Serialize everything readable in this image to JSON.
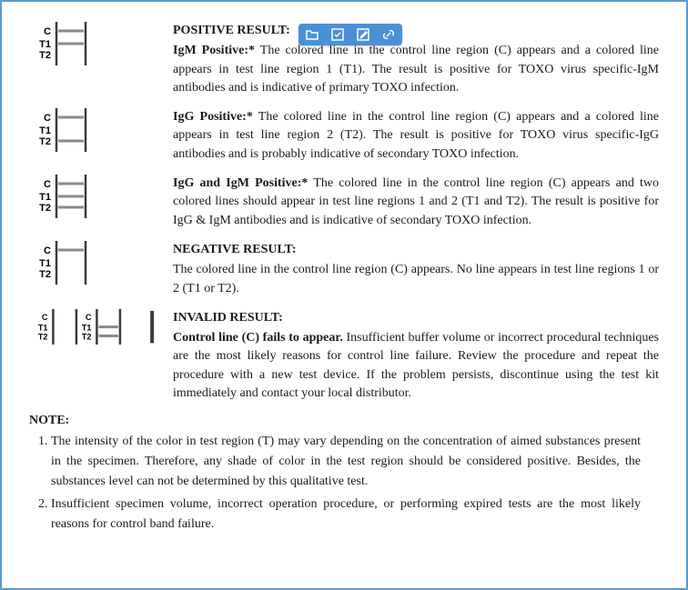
{
  "toolbar": {
    "bg": "#4a90d9",
    "icon_color": "#ffffff"
  },
  "strip": {
    "width": 56,
    "height": 48,
    "labels": [
      "C",
      "T1",
      "T2"
    ],
    "label_font": 11,
    "border_color": "#3a3a3a",
    "line_color": "#8a8a8a",
    "line_thickness": 3
  },
  "sections": {
    "positive": {
      "heading": "POSITIVE RESULT:",
      "igm": {
        "leadin": "IgM Positive:*",
        "body": " The colored line in the control line region (C) appears and a colored line appears in test line region 1 (T1). The result is positive for TOXO virus specific-IgM antibodies  and is indicative of primary TOXO infection.",
        "lines": {
          "C": true,
          "T1": true,
          "T2": false
        }
      },
      "igg": {
        "leadin": "IgG Positive:*",
        "body": " The colored line in the control line region (C) appears and a colored line appears in test line region 2 (T2). The result is positive for TOXO virus specific-IgG antibodies and is probably indicative of secondary TOXO infection.",
        "lines": {
          "C": true,
          "T1": false,
          "T2": true
        }
      },
      "both": {
        "leadin": "IgG and IgM Positive:*",
        "body": " The colored line in the control line region (C) appears and two colored lines should appear in test line regions 1 and 2 (T1 and T2). The result is positive for IgG & IgM antibodies and is indicative of secondary TOXO infection.",
        "lines": {
          "C": true,
          "T1": true,
          "T2": true
        }
      }
    },
    "negative": {
      "heading": "NEGATIVE RESULT:",
      "body": "The colored line in the control line region (C) appears. No line appears in test line regions 1 or 2 (T1 or T2).",
      "lines": {
        "C": true,
        "T1": false,
        "T2": false
      }
    },
    "invalid": {
      "heading": "INVALID RESULT:",
      "leadin": "Control line (C) fails to appear.",
      "body": " Insufficient buffer volume or incorrect procedural techniques are the most likely reasons for control line failure. Review the procedure and repeat the procedure with a new test device. If the problem persists, discontinue using the test kit immediately and contact your local distributor.",
      "strips": [
        {
          "C": false,
          "T1": false,
          "T2": false
        },
        {
          "C": false,
          "T1": true,
          "T2": true
        },
        {
          "C": false,
          "T1": false,
          "T2": false,
          "single_bar": true
        }
      ]
    }
  },
  "note": {
    "heading": "NOTE:",
    "items": [
      "The intensity of the color in test region (T) may vary depending on the concentration of aimed substances present in the specimen. Therefore, any shade of color in the test region should be considered positive. Besides, the substances level can not be determined by this qualitative test.",
      "Insufficient specimen volume, incorrect operation procedure, or performing expired tests are the most likely reasons for control band failure."
    ]
  }
}
